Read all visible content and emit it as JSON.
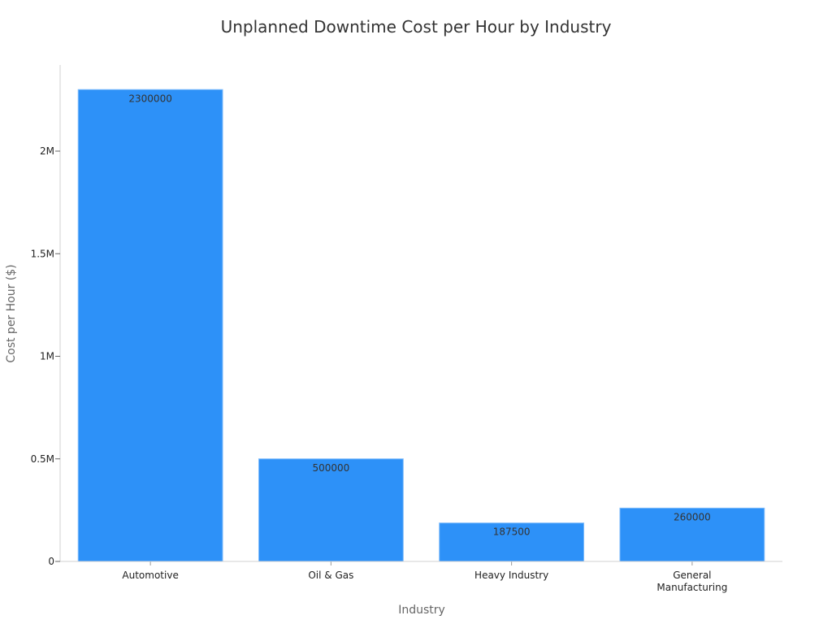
{
  "chart_data": {
    "type": "bar",
    "title": "Unplanned Downtime Cost per Hour by Industry",
    "xlabel": "Industry",
    "ylabel": "Cost per Hour ($)",
    "categories": [
      [
        "Automotive"
      ],
      [
        "Oil & Gas"
      ],
      [
        "Heavy Industry"
      ],
      [
        "General",
        "Manufacturing"
      ]
    ],
    "values": [
      2300000,
      500000,
      187500,
      260000
    ],
    "data_labels": [
      "2300000",
      "500000",
      "187500",
      "260000"
    ],
    "ylim": [
      0,
      2420000
    ],
    "yticks": [
      0,
      500000,
      1000000,
      1500000,
      2000000
    ],
    "ytick_labels": [
      "0",
      "0.5M",
      "1M",
      "1.5M",
      "2M"
    ],
    "grid": false,
    "colors": {
      "bar": "#2d91f8",
      "bar_edge": "#7fbcfb",
      "axis": "#d0d0d0",
      "text": "#333333"
    }
  }
}
